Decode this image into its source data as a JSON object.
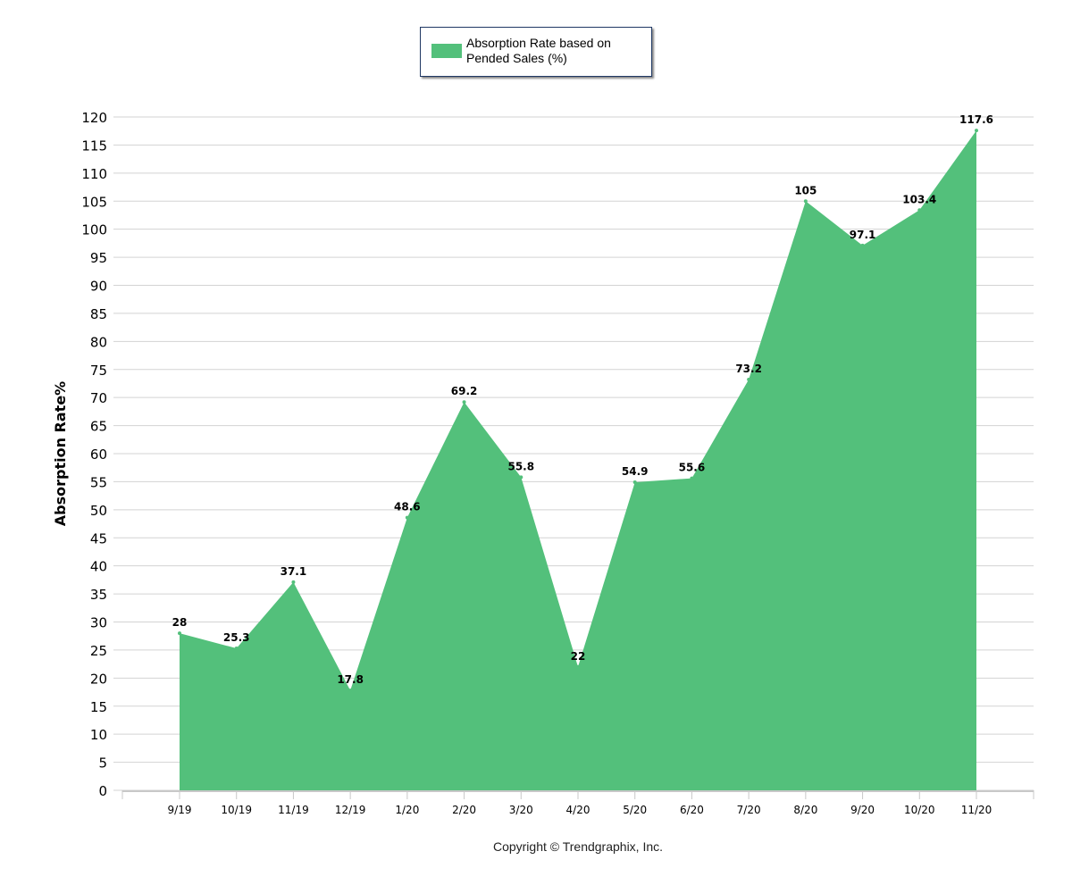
{
  "chart_data": {
    "type": "area",
    "title": "",
    "xlabel": "",
    "ylabel": "Absorption Rate%",
    "categories": [
      "9/19",
      "10/19",
      "11/19",
      "12/19",
      "1/20",
      "2/20",
      "3/20",
      "4/20",
      "5/20",
      "6/20",
      "7/20",
      "8/20",
      "9/20",
      "10/20",
      "11/20"
    ],
    "series": [
      {
        "name": "Absorption Rate based on Pended Sales (%)",
        "values": [
          28,
          25.3,
          37.1,
          17.8,
          48.6,
          69.2,
          55.8,
          22,
          54.9,
          55.6,
          73.2,
          105,
          97.1,
          103.4,
          117.6
        ],
        "color": "#53c07b"
      }
    ],
    "ylim": [
      0,
      120
    ],
    "ytick_step": 5,
    "grid": true,
    "legend_position": "top-center",
    "data_labels": true
  },
  "footer": {
    "copyright": "Copyright © Trendgraphix, Inc."
  }
}
